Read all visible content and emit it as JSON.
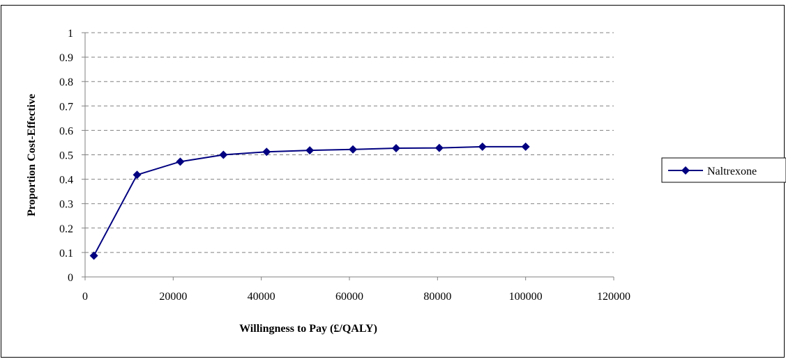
{
  "chart_data": {
    "type": "line",
    "title": "",
    "xlabel": "Willingness to Pay (£/QALY)",
    "ylabel": "Proportion Cost-Effective",
    "xlim": [
      0,
      120000
    ],
    "ylim": [
      0,
      1
    ],
    "x_ticks": [
      "0",
      "20000",
      "40000",
      "60000",
      "80000",
      "100000",
      "120000"
    ],
    "y_ticks": [
      "0",
      "0.1",
      "0.2",
      "0.3",
      "0.4",
      "0.5",
      "0.6",
      "0.7",
      "0.8",
      "0.9",
      "1"
    ],
    "x_tick_values": [
      0,
      20000,
      40000,
      60000,
      80000,
      100000,
      120000
    ],
    "y_tick_values": [
      0,
      0.1,
      0.2,
      0.3,
      0.4,
      0.5,
      0.6,
      0.7,
      0.8,
      0.9,
      1
    ],
    "grid": "horizontal dashed",
    "legend_position": "right",
    "series": [
      {
        "name": "Naltrexone",
        "color": "#000080",
        "marker": "diamond",
        "x": [
          2000,
          11800,
          21600,
          31400,
          41200,
          51000,
          60800,
          70600,
          80400,
          90200,
          100000
        ],
        "y": [
          0.087,
          0.418,
          0.472,
          0.5,
          0.512,
          0.518,
          0.522,
          0.527,
          0.528,
          0.533,
          0.533
        ]
      }
    ]
  }
}
